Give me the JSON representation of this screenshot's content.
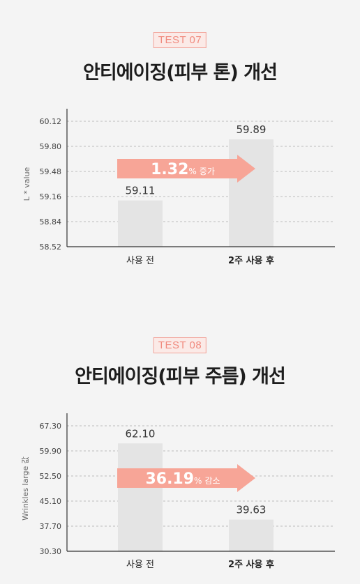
{
  "charts": [
    {
      "badge": "TEST 07",
      "title": "안티에이징(피부 톤) 개선",
      "chart_data": {
        "type": "bar",
        "categories": [
          "사용 전",
          "2주 사용 후"
        ],
        "values": [
          59.11,
          59.89
        ],
        "value_labels": [
          "59.11",
          "59.89"
        ],
        "ylabel": "L * value",
        "yticks": [
          "60.12",
          "59.80",
          "59.48",
          "59.16",
          "58.84",
          "58.52"
        ],
        "ylim": [
          58.52,
          60.12
        ],
        "grid": true,
        "annotation": {
          "value": "1.32",
          "unit": "%",
          "label": "증가"
        },
        "colors": {
          "bar": "#e4e4e4",
          "arrow": "#f7a597",
          "grid": "#bdbdbd",
          "axis": "#333333"
        }
      }
    },
    {
      "badge": "TEST 08",
      "title": "안티에이징(피부 주름) 개선",
      "chart_data": {
        "type": "bar",
        "categories": [
          "사용 전",
          "2주 사용 후"
        ],
        "values": [
          62.1,
          39.63
        ],
        "value_labels": [
          "62.10",
          "39.63"
        ],
        "ylabel": "Wrinkles large 값",
        "yticks": [
          "67.30",
          "59.90",
          "52.50",
          "45.10",
          "37.70",
          "30.30"
        ],
        "ylim": [
          30.3,
          67.3
        ],
        "grid": true,
        "annotation": {
          "value": "36.19",
          "unit": "%",
          "label": "감소"
        },
        "colors": {
          "bar": "#e4e4e4",
          "arrow": "#f7a597",
          "grid": "#bdbdbd",
          "axis": "#333333"
        }
      }
    }
  ]
}
